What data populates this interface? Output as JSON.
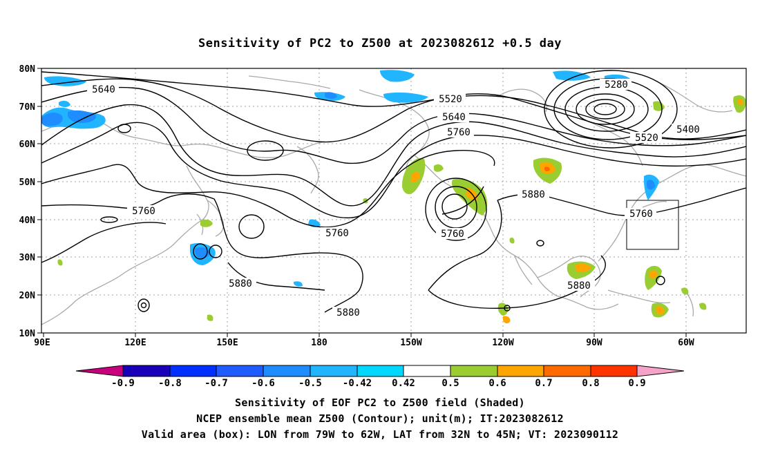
{
  "title": "Sensitivity of PC2 to Z500 at 2023082612 +0.5 day",
  "lat_labels": [
    "80N",
    "70N",
    "60N",
    "50N",
    "40N",
    "30N",
    "20N",
    "10N"
  ],
  "lon_labels": [
    "90E",
    "120E",
    "150E",
    "180",
    "150W",
    "120W",
    "90W",
    "60W"
  ],
  "contour_labels": [
    "5640",
    "5520",
    "5640",
    "5760",
    "5280",
    "5400",
    "5520",
    "5760",
    "5760",
    "5880",
    "5760",
    "5880",
    "5880",
    "5880",
    "5760"
  ],
  "colorbar": {
    "ticks": [
      "-0.9",
      "-0.8",
      "-0.7",
      "-0.6",
      "-0.5",
      "-0.42",
      "0.42",
      "0.5",
      "0.6",
      "0.7",
      "0.8",
      "0.9"
    ],
    "colors": [
      "#c8007e",
      "#1a00b8",
      "#0030ff",
      "#1f5cff",
      "#1f8cff",
      "#21b4ff",
      "#00d8ff",
      "#ffffff",
      "#9acd32",
      "#ffa500",
      "#ff6a00",
      "#ff3300",
      "#ff0000",
      "#f5a3c8"
    ]
  },
  "captions": [
    "Sensitivity of EOF PC2 to Z500 field (Shaded)",
    "NCEP ensemble mean Z500 (Contour); unit(m); IT:2023082612",
    "Valid area (box): LON from 79W to 62W, LAT from 32N to 45N; VT: 2023090112"
  ]
}
